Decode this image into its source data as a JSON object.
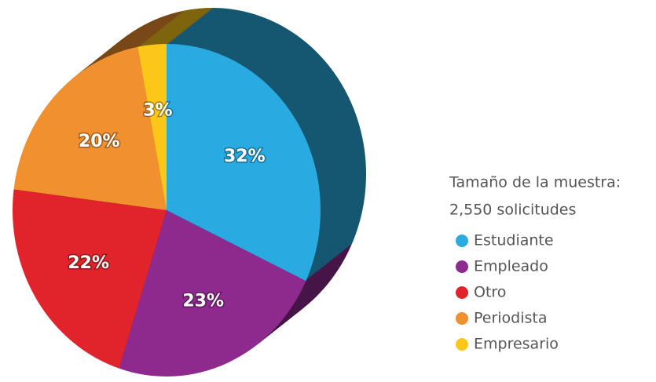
{
  "chart_data": {
    "type": "pie",
    "subtitle_lines": [
      "Tamaño de la muestra:",
      "2,550 solicitudes"
    ],
    "categories": [
      "Estudiante",
      "Empleado",
      "Otro",
      "Periodista",
      "Empresario"
    ],
    "values": [
      32,
      23,
      22,
      20,
      3
    ],
    "value_labels": [
      "32%",
      "23%",
      "22%",
      "20%",
      "3%"
    ],
    "colors": [
      "#29abe2",
      "#8e2a8e",
      "#e1242b",
      "#f0902f",
      "#fcc719"
    ],
    "legend": "right"
  }
}
